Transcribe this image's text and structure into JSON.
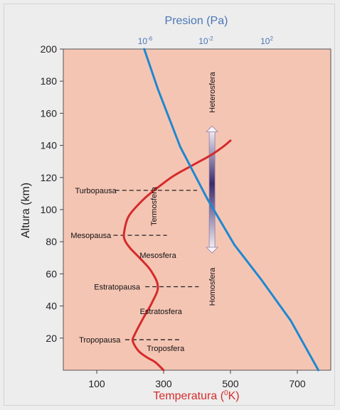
{
  "chart_data": {
    "type": "line",
    "bottom_axis": {
      "label_main": "Temperatura (",
      "label_sup": "0",
      "label_end": "K)",
      "ticks": [
        100,
        300,
        500,
        700
      ],
      "range": [
        0,
        800
      ],
      "color": "#d42b2b"
    },
    "left_axis": {
      "label": "Altura (km)",
      "ticks": [
        20,
        40,
        60,
        80,
        100,
        120,
        140,
        160,
        180,
        200
      ],
      "range": [
        0,
        200
      ]
    },
    "top_axis": {
      "label": "Presion (Pa)",
      "ticks": [
        {
          "base": "10",
          "exp": "-6",
          "value": -6
        },
        {
          "base": "10",
          "exp": "-2",
          "value": -2
        },
        {
          "base": "10",
          "exp": "2",
          "value": 2
        }
      ],
      "color": "#4a76b8"
    },
    "series": [
      {
        "color": "#d42b2b",
        "x": [
          300,
          275,
          250,
          225,
          208,
          213,
          238,
          265,
          283,
          262,
          228,
          200,
          184,
          182,
          196,
          238,
          278,
          330,
          390,
          442,
          477,
          500
        ],
        "y": [
          0,
          5,
          8,
          12,
          18,
          22,
          32,
          42,
          52,
          62,
          70,
          76,
          81,
          86,
          96,
          106,
          113,
          121,
          128,
          134,
          139,
          143
        ]
      },
      {
        "color": "#1e88d0",
        "x": [
          242,
          283,
          350,
          430,
          512,
          590,
          680,
          763
        ],
        "y": [
          200,
          175,
          139,
          107,
          78,
          57,
          31,
          0
        ]
      }
    ],
    "layers": [
      {
        "text": "Termosfera",
        "x": 270,
        "y": 102,
        "vertical": true
      },
      {
        "text": "Mesosfera",
        "x": 283,
        "y": 70,
        "vertical": false
      },
      {
        "text": "Estratosfera",
        "x": 292,
        "y": 35,
        "vertical": false
      },
      {
        "text": "Troposfera",
        "x": 306,
        "y": 12,
        "vertical": false
      },
      {
        "text": "Heterosfera",
        "x": 445,
        "y": 173,
        "vertical": true
      },
      {
        "text": "Homosfera",
        "x": 445,
        "y": 52,
        "vertical": true
      }
    ],
    "boundaries": [
      {
        "text": "Turbopausa",
        "y": 112,
        "x_text": 35,
        "x_start": 155,
        "x_end": 400
      },
      {
        "text": "Mesopausa",
        "y": 84,
        "x_text": 22,
        "x_start": 150,
        "x_end": 310
      },
      {
        "text": "Estratopausa",
        "y": 52,
        "x_text": 92,
        "x_start": 245,
        "x_end": 405
      },
      {
        "text": "Tropopausa",
        "y": 19,
        "x_text": 47,
        "x_start": 185,
        "x_end": 355
      }
    ],
    "homo_hetero_arrow": {
      "x": 445,
      "y_top": 152,
      "y_bottom": 73
    }
  }
}
